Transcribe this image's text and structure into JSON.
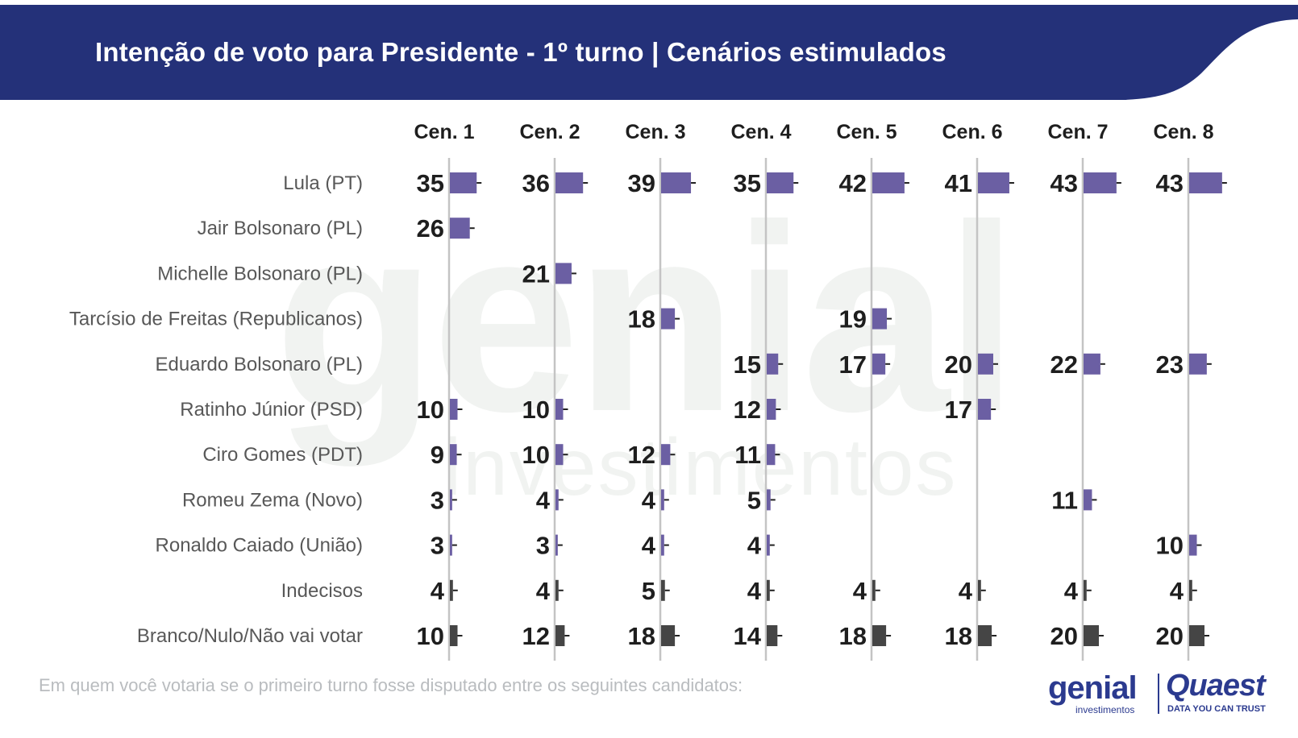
{
  "header": {
    "title": "Intenção de voto para Presidente - 1º turno | Cenários estimulados"
  },
  "colors": {
    "header_bg": "#243179",
    "candidate_bar": "#6b5fa3",
    "blank_bar": "#454545",
    "axis_line": "#c4c4c4",
    "label_text": "#585858",
    "value_text": "#1e1e1e"
  },
  "watermark": {
    "word": "genial",
    "sub": "investimentos"
  },
  "chart_data": {
    "type": "bar",
    "layout": "small-multiples-horizontal",
    "title": "Intenção de voto para Presidente - 1º turno | Cenários estimulados",
    "scenarios": [
      "Cen. 1",
      "Cen. 2",
      "Cen. 3",
      "Cen. 4",
      "Cen. 5",
      "Cen. 6",
      "Cen. 7",
      "Cen. 8"
    ],
    "rows": [
      {
        "label": "Lula (PT)",
        "kind": "candidate",
        "values": [
          35,
          36,
          39,
          35,
          42,
          41,
          43,
          43
        ]
      },
      {
        "label": "Jair Bolsonaro (PL)",
        "kind": "candidate",
        "values": [
          26,
          null,
          null,
          null,
          null,
          null,
          null,
          null
        ]
      },
      {
        "label": "Michelle Bolsonaro (PL)",
        "kind": "candidate",
        "values": [
          null,
          21,
          null,
          null,
          null,
          null,
          null,
          null
        ]
      },
      {
        "label": "Tarcísio de Freitas (Republicanos)",
        "kind": "candidate",
        "values": [
          null,
          null,
          18,
          null,
          19,
          null,
          null,
          null
        ]
      },
      {
        "label": "Eduardo Bolsonaro (PL)",
        "kind": "candidate",
        "values": [
          null,
          null,
          null,
          15,
          17,
          20,
          22,
          23
        ]
      },
      {
        "label": "Ratinho Júnior (PSD)",
        "kind": "candidate",
        "values": [
          10,
          10,
          null,
          12,
          null,
          17,
          null,
          null
        ]
      },
      {
        "label": "Ciro Gomes (PDT)",
        "kind": "candidate",
        "values": [
          9,
          10,
          12,
          11,
          null,
          null,
          null,
          null
        ]
      },
      {
        "label": "Romeu Zema (Novo)",
        "kind": "candidate",
        "values": [
          3,
          4,
          4,
          5,
          null,
          null,
          11,
          null
        ]
      },
      {
        "label": "Ronaldo Caiado (União)",
        "kind": "candidate",
        "values": [
          3,
          3,
          4,
          4,
          null,
          null,
          null,
          10
        ]
      },
      {
        "label": "Indecisos",
        "kind": "other",
        "values": [
          4,
          4,
          5,
          4,
          4,
          4,
          4,
          4
        ]
      },
      {
        "label": "Branco/Nulo/Não vai votar",
        "kind": "other",
        "values": [
          10,
          12,
          18,
          14,
          18,
          18,
          20,
          20
        ]
      }
    ]
  },
  "footer": {
    "question": "Em quem você votaria se o primeiro turno fosse disputado entre os seguintes candidatos:",
    "logo_genial": "genial",
    "logo_genial_sub": "investimentos",
    "logo_quaest": "Quaest",
    "logo_quaest_sub": "DATA YOU CAN TRUST"
  }
}
